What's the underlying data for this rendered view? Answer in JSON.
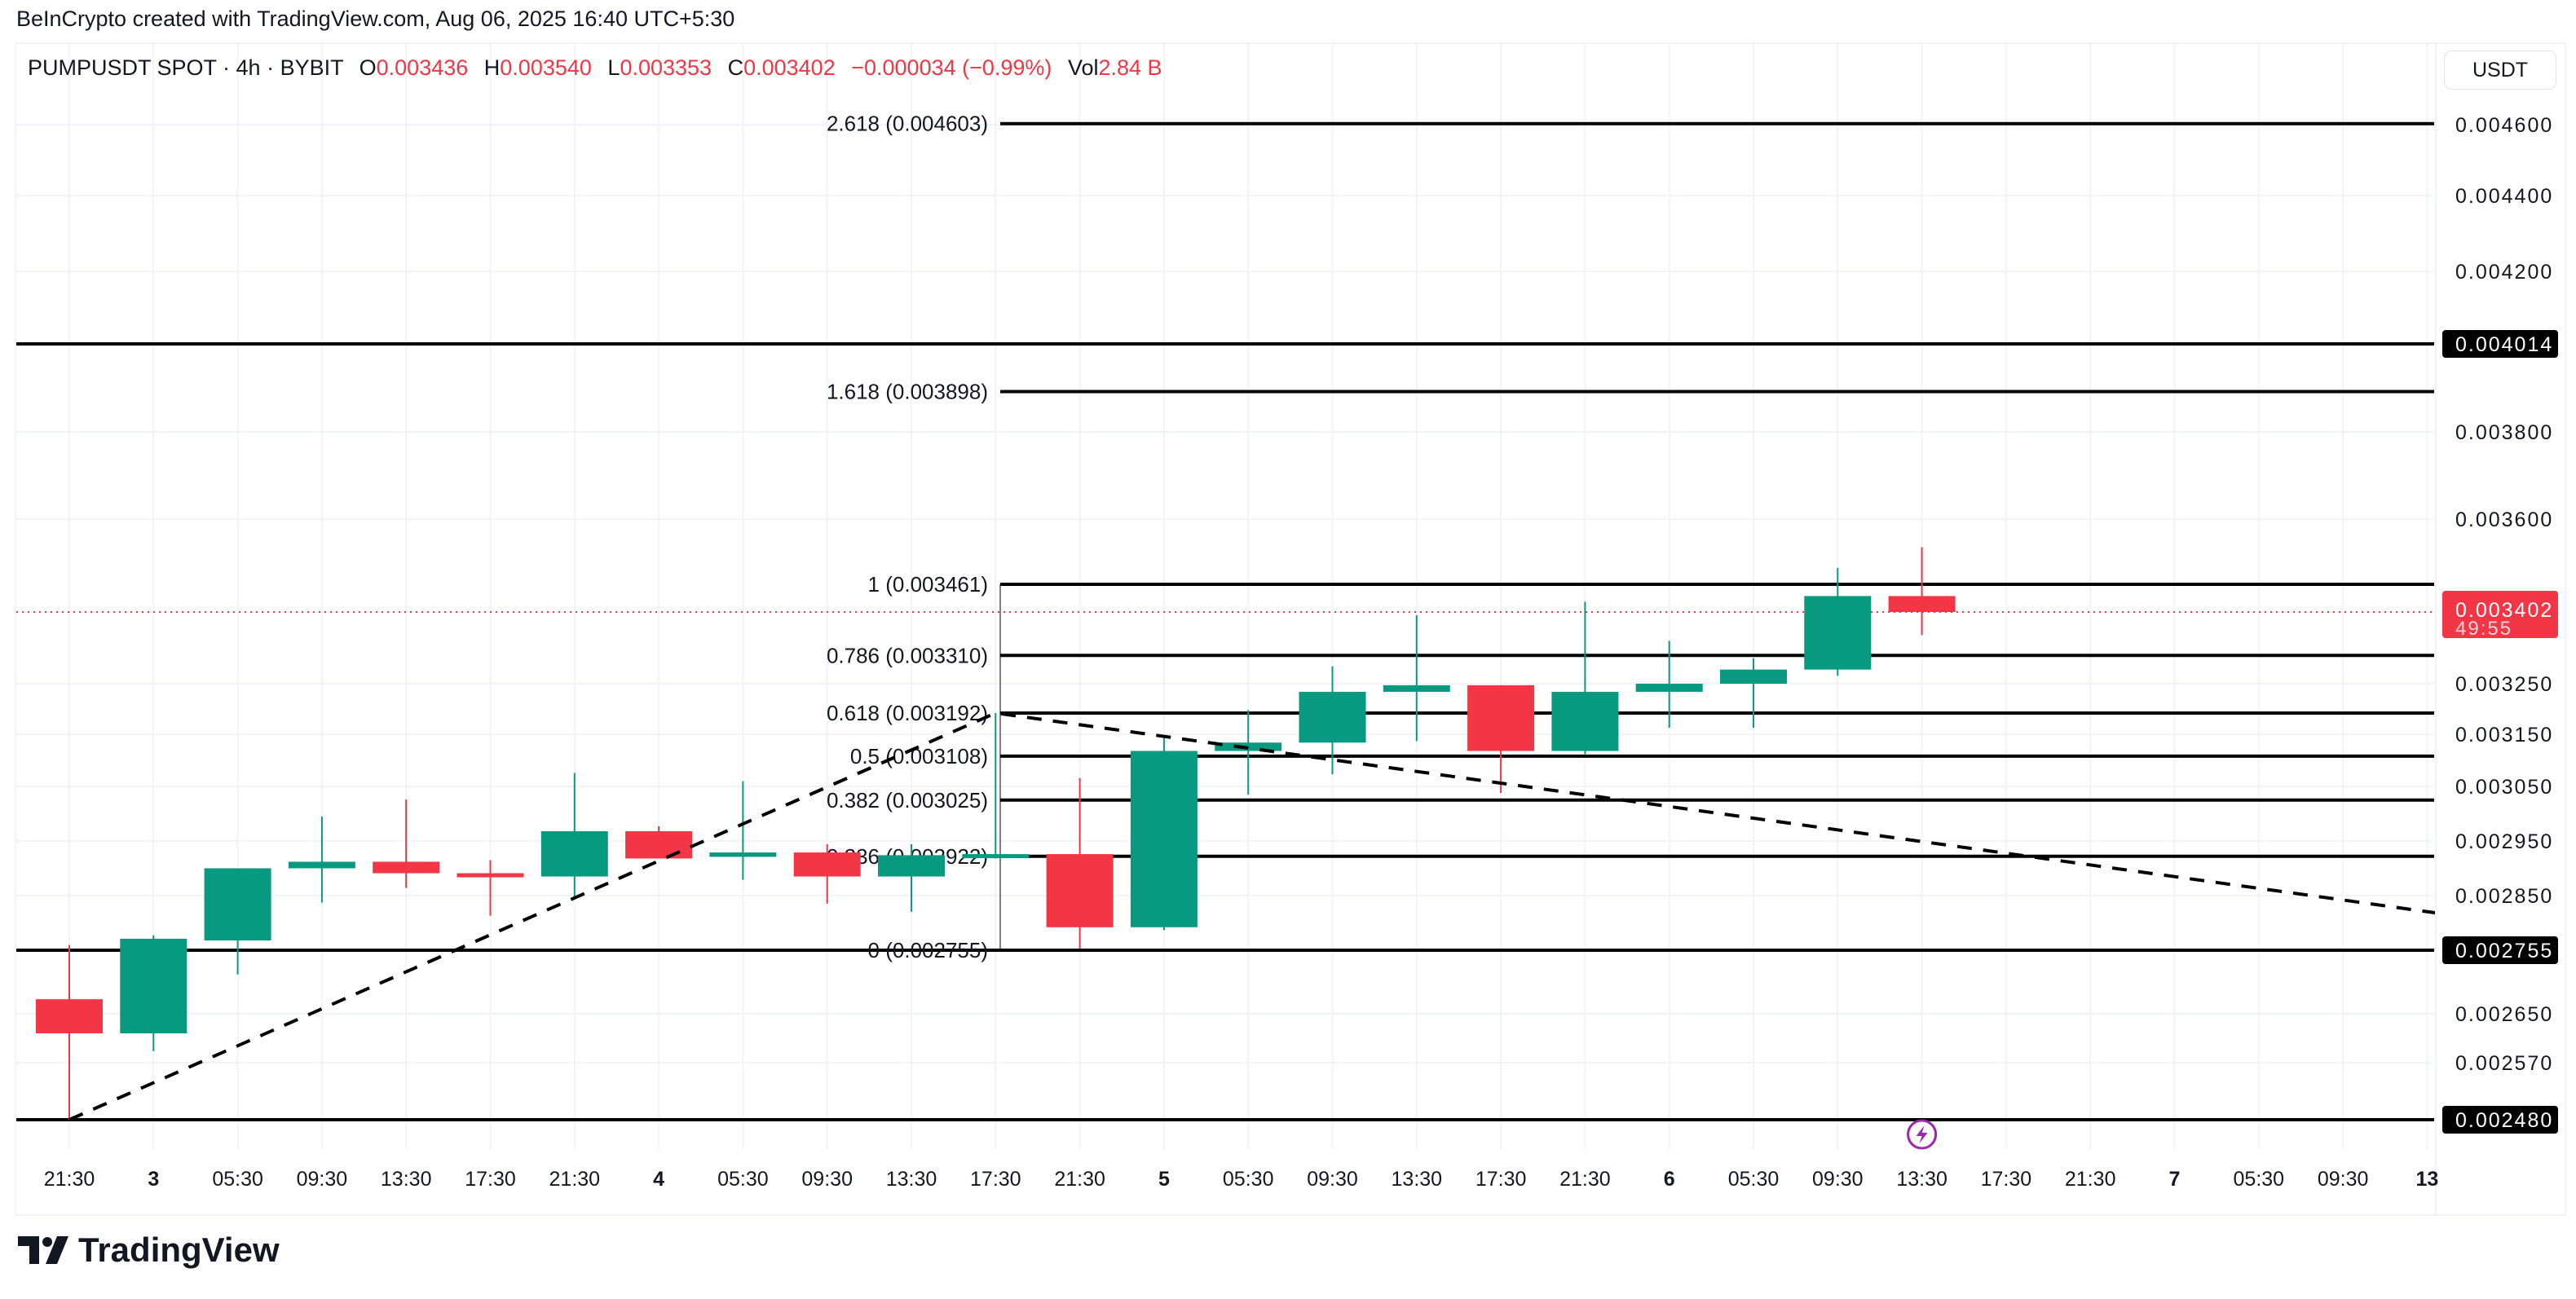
{
  "header": {
    "credit": "BeInCrypto created with TradingView.com, Aug 06, 2025 16:40 UTC+5:30"
  },
  "legend": {
    "symbol": "PUMPUSDT SPOT · 4h · BYBIT",
    "o_label": "O",
    "o": "0.003436",
    "h_label": "H",
    "h": "0.003540",
    "l_label": "L",
    "l": "0.003353",
    "c_label": "C",
    "c": "0.003402",
    "change": "−0.000034 (−0.99%)",
    "vol_label": "Vol",
    "vol": "2.84 B"
  },
  "price_axis": {
    "unit": "USDT",
    "ticks": [
      "0.004600",
      "0.004400",
      "0.004200",
      "0.003800",
      "0.003600",
      "0.003250",
      "0.003150",
      "0.003050",
      "0.002950",
      "0.002850",
      "0.002650",
      "0.002570"
    ],
    "badges": [
      {
        "value": "0.004014",
        "color": "#000000"
      },
      {
        "value": "0.002755",
        "color": "#000000"
      },
      {
        "value": "0.002480",
        "color": "#000000"
      }
    ],
    "current": {
      "value": "0.003402",
      "countdown": "49:55",
      "color": "#f23645"
    }
  },
  "chart_data": {
    "type": "candlestick",
    "up_color": "#089981",
    "down_color": "#f23645",
    "x_labels": [
      "21:30",
      "3",
      "05:30",
      "09:30",
      "13:30",
      "17:30",
      "21:30",
      "4",
      "05:30",
      "09:30",
      "13:30",
      "17:30",
      "21:30",
      "5",
      "05:30",
      "09:30",
      "13:30",
      "17:30",
      "21:30",
      "6",
      "05:30",
      "09:30",
      "13:30",
      "17:30",
      "21:30",
      "7",
      "05:30",
      "09:30",
      "13"
    ],
    "candles": [
      {
        "o": 0.002674,
        "h": 0.002764,
        "l": 0.00248,
        "c": 0.002618
      },
      {
        "o": 0.002618,
        "h": 0.002781,
        "l": 0.002589,
        "c": 0.002775
      },
      {
        "o": 0.002772,
        "h": 0.0029,
        "l": 0.002715,
        "c": 0.0029
      },
      {
        "o": 0.0029,
        "h": 0.002995,
        "l": 0.002838,
        "c": 0.002912
      },
      {
        "o": 0.002912,
        "h": 0.003026,
        "l": 0.002864,
        "c": 0.002891
      },
      {
        "o": 0.002891,
        "h": 0.002915,
        "l": 0.002815,
        "c": 0.002888
      },
      {
        "o": 0.002885,
        "h": 0.003076,
        "l": 0.002844,
        "c": 0.002968
      },
      {
        "o": 0.002968,
        "h": 0.002977,
        "l": 0.002918,
        "c": 0.002918
      },
      {
        "o": 0.002921,
        "h": 0.00306,
        "l": 0.002879,
        "c": 0.002929
      },
      {
        "o": 0.002929,
        "h": 0.002944,
        "l": 0.002836,
        "c": 0.002885
      },
      {
        "o": 0.002885,
        "h": 0.002944,
        "l": 0.002822,
        "c": 0.002924
      },
      {
        "o": 0.002924,
        "h": 0.003192,
        "l": 0.002918,
        "c": 0.002926
      },
      {
        "o": 0.002926,
        "h": 0.003066,
        "l": 0.002758,
        "c": 0.002795
      },
      {
        "o": 0.002795,
        "h": 0.003144,
        "l": 0.00279,
        "c": 0.003118
      },
      {
        "o": 0.003118,
        "h": 0.003198,
        "l": 0.003035,
        "c": 0.003134
      },
      {
        "o": 0.003134,
        "h": 0.003287,
        "l": 0.003073,
        "c": 0.003234
      },
      {
        "o": 0.003234,
        "h": 0.003395,
        "l": 0.003137,
        "c": 0.003247
      },
      {
        "o": 0.003247,
        "h": 0.003247,
        "l": 0.003038,
        "c": 0.003118
      },
      {
        "o": 0.003118,
        "h": 0.003424,
        "l": 0.003112,
        "c": 0.003234
      },
      {
        "o": 0.003234,
        "h": 0.003341,
        "l": 0.003163,
        "c": 0.00325
      },
      {
        "o": 0.00325,
        "h": 0.003304,
        "l": 0.003163,
        "c": 0.00328
      },
      {
        "o": 0.00328,
        "h": 0.003496,
        "l": 0.003267,
        "c": 0.003436
      },
      {
        "o": 0.003436,
        "h": 0.00354,
        "l": 0.003353,
        "c": 0.003402
      }
    ],
    "fib_levels": [
      {
        "label": "2.618 (0.004603)",
        "price": 0.004603
      },
      {
        "label": "1.618 (0.003898)",
        "price": 0.003898
      },
      {
        "label": "1 (0.003461)",
        "price": 0.003461
      },
      {
        "label": "0.786 (0.003310)",
        "price": 0.00331
      },
      {
        "label": "0.618 (0.003192)",
        "price": 0.003192
      },
      {
        "label": "0.5 (0.003108)",
        "price": 0.003108
      },
      {
        "label": "0.382 (0.003025)",
        "price": 0.003025
      },
      {
        "label": "0.236 (0.002922)",
        "price": 0.002922
      },
      {
        "label": "0 (0.002755)",
        "price": 0.002755
      }
    ],
    "horizontal_lines": [
      0.004014,
      0.002755,
      0.00248
    ],
    "trend_line": [
      {
        "bar": 0,
        "price": 0.00248
      },
      {
        "bar": 11,
        "price": 0.003192
      },
      {
        "bar": 28.1,
        "price": 0.00282
      }
    ],
    "current_price": 0.003402,
    "event_marker": {
      "bar": 22,
      "icon": "lightning-icon",
      "color": "#9c27b0"
    },
    "grid": true
  },
  "footer": {
    "logo_text": "TradingView"
  }
}
